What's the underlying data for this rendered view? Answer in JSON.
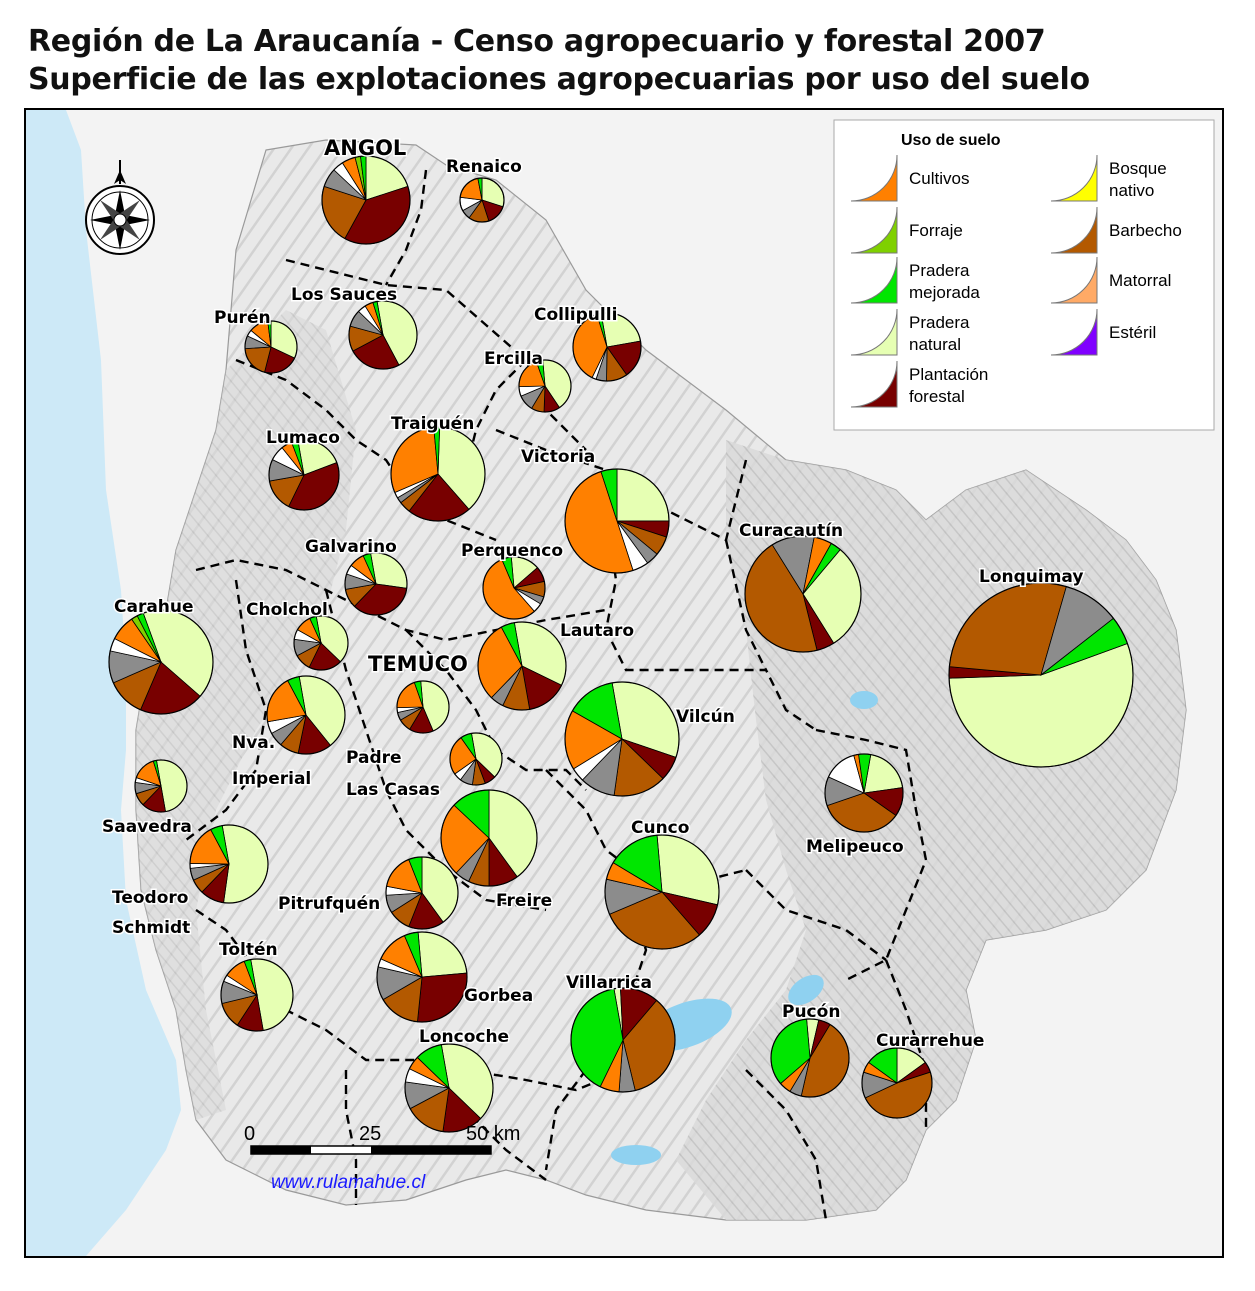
{
  "title": "Región de La Araucanía - Censo agropecuario y forestal 2007",
  "subtitle": "Superficie de las explotaciones agropecuarias por uso del suelo",
  "legend": {
    "title": "Uso de suelo",
    "items": [
      {
        "key": "cultivos",
        "label": [
          "Cultivos"
        ],
        "color": "#ff8000"
      },
      {
        "key": "forraje",
        "label": [
          "Forraje"
        ],
        "color": "#7fd000"
      },
      {
        "key": "pradera_mejorada",
        "label": [
          "Pradera",
          "mejorada"
        ],
        "color": "#00e600"
      },
      {
        "key": "pradera_natural",
        "label": [
          "Pradera",
          "natural"
        ],
        "color": "#e6ffb3"
      },
      {
        "key": "plantacion_forestal",
        "label": [
          "Plantación",
          "forestal"
        ],
        "color": "#780000"
      },
      {
        "key": "bosque_nativo",
        "label": [
          "Bosque",
          "nativo"
        ],
        "color": "#ffff00"
      },
      {
        "key": "barbecho",
        "label": [
          "Barbecho"
        ],
        "color": "#b35900"
      },
      {
        "key": "matorral",
        "label": [
          "Matorral"
        ],
        "color": "#ffaa66"
      },
      {
        "key": "esteril",
        "label": [
          "Estéril"
        ],
        "color": "#8000ff"
      }
    ]
  },
  "extra_colors": {
    "otros": "#8c8c8c",
    "sin_dato": "#ffffff"
  },
  "chart_data": {
    "type": "pie",
    "note_units": "share of farm area by land use (fraction), per commune",
    "communes": [
      {
        "name": "ANGOL",
        "values": {
          "pradera_natural": 0.2,
          "plantacion_forestal": 0.38,
          "barbecho": 0.22,
          "otros": 0.07,
          "cultivos": 0.05,
          "forraje": 0.02,
          "pradera_mejorada": 0.02,
          "sin_dato": 0.04
        }
      },
      {
        "name": "Renaico",
        "values": {
          "pradera_mejorada": 0.03,
          "pradera_natural": 0.3,
          "barbecho": 0.15,
          "plantacion_forestal": 0.15,
          "otros": 0.07,
          "cultivos": 0.2,
          "sin_dato": 0.1
        }
      },
      {
        "name": "Los Sauces",
        "values": {
          "pradera_natural": 0.45,
          "plantacion_forestal": 0.25,
          "barbecho": 0.12,
          "otros": 0.08,
          "cultivos": 0.04,
          "pradera_mejorada": 0.02,
          "sin_dato": 0.04
        }
      },
      {
        "name": "Purén",
        "values": {
          "pradera_natural": 0.32,
          "plantacion_forestal": 0.22,
          "barbecho": 0.2,
          "otros": 0.08,
          "cultivos": 0.12,
          "pradera_mejorada": 0.02,
          "sin_dato": 0.04
        }
      },
      {
        "name": "Collipulli",
        "values": {
          "pradera_natural": 0.25,
          "plantacion_forestal": 0.18,
          "barbecho": 0.1,
          "otros": 0.05,
          "cultivos": 0.38,
          "pradera_mejorada": 0.02,
          "sin_dato": 0.02
        }
      },
      {
        "name": "Ercilla",
        "values": {
          "pradera_natural": 0.42,
          "plantacion_forestal": 0.1,
          "barbecho": 0.08,
          "otros": 0.1,
          "cultivos": 0.2,
          "pradera_mejorada": 0.04,
          "sin_dato": 0.06
        }
      },
      {
        "name": "Traiguén",
        "values": {
          "pradera_natural": 0.38,
          "plantacion_forestal": 0.22,
          "barbecho": 0.04,
          "otros": 0.02,
          "cultivos": 0.3,
          "pradera_mejorada": 0.02,
          "sin_dato": 0.02
        }
      },
      {
        "name": "Lumaco",
        "values": {
          "pradera_natural": 0.22,
          "plantacion_forestal": 0.38,
          "barbecho": 0.15,
          "otros": 0.1,
          "cultivos": 0.05,
          "pradera_mejorada": 0.03,
          "sin_dato": 0.07
        }
      },
      {
        "name": "Victoria",
        "values": {
          "cultivos": 0.5,
          "pradera_mejorada": 0.05,
          "pradera_natural": 0.25,
          "plantacion_forestal": 0.05,
          "barbecho": 0.06,
          "otros": 0.04,
          "sin_dato": 0.05
        }
      },
      {
        "name": "Galvarino",
        "values": {
          "pradera_natural": 0.3,
          "plantacion_forestal": 0.35,
          "barbecho": 0.1,
          "otros": 0.08,
          "cultivos": 0.08,
          "pradera_mejorada": 0.04,
          "sin_dato": 0.05
        }
      },
      {
        "name": "Perquenco",
        "values": {
          "cultivos": 0.55,
          "pradera_mejorada": 0.05,
          "pradera_natural": 0.15,
          "plantacion_forestal": 0.08,
          "barbecho": 0.08,
          "otros": 0.04,
          "sin_dato": 0.05
        }
      },
      {
        "name": "Curacautín",
        "values": {
          "pradera_natural": 0.3,
          "plantacion_forestal": 0.05,
          "barbecho": 0.45,
          "otros": 0.12,
          "cultivos": 0.05,
          "pradera_mejorada": 0.03
        }
      },
      {
        "name": "Lonquimay",
        "values": {
          "pradera_natural": 0.55,
          "plantacion_forestal": 0.02,
          "barbecho": 0.28,
          "otros": 0.1,
          "pradera_mejorada": 0.05
        }
      },
      {
        "name": "Carahue",
        "values": {
          "pradera_natural": 0.42,
          "plantacion_forestal": 0.2,
          "barbecho": 0.12,
          "otros": 0.1,
          "cultivos": 0.08,
          "forraje": 0.02,
          "pradera_mejorada": 0.02,
          "sin_dato": 0.04
        }
      },
      {
        "name": "Cholchol",
        "values": {
          "pradera_natural": 0.4,
          "plantacion_forestal": 0.2,
          "barbecho": 0.1,
          "otros": 0.1,
          "cultivos": 0.1,
          "pradera_mejorada": 0.04,
          "sin_dato": 0.06
        }
      },
      {
        "name": "Lautaro",
        "values": {
          "pradera_natural": 0.35,
          "plantacion_forestal": 0.15,
          "barbecho": 0.1,
          "otros": 0.05,
          "cultivos": 0.3,
          "pradera_mejorada": 0.05
        }
      },
      {
        "name": "TEMUCO",
        "values": {
          "pradera_natural": 0.45,
          "plantacion_forestal": 0.15,
          "barbecho": 0.08,
          "otros": 0.05,
          "cultivos": 0.2,
          "pradera_mejorada": 0.04,
          "sin_dato": 0.03
        }
      },
      {
        "name": "Nva. Imperial",
        "values": {
          "pradera_natural": 0.42,
          "plantacion_forestal": 0.14,
          "barbecho": 0.08,
          "otros": 0.06,
          "cultivos": 0.2,
          "pradera_mejorada": 0.05,
          "sin_dato": 0.05
        }
      },
      {
        "name": "Vilcún",
        "values": {
          "pradera_natural": 0.33,
          "plantacion_forestal": 0.07,
          "barbecho": 0.15,
          "otros": 0.1,
          "cultivos": 0.17,
          "pradera_mejorada": 0.14,
          "sin_dato": 0.04
        }
      },
      {
        "name": "Padre Las Casas",
        "values": {
          "pradera_natural": 0.4,
          "plantacion_forestal": 0.07,
          "barbecho": 0.08,
          "otros": 0.08,
          "cultivos": 0.25,
          "pradera_mejorada": 0.07,
          "sin_dato": 0.05
        }
      },
      {
        "name": "Saavedra",
        "values": {
          "pradera_natural": 0.5,
          "plantacion_forestal": 0.15,
          "barbecho": 0.08,
          "otros": 0.07,
          "cultivos": 0.15,
          "pradera_mejorada": 0.02,
          "sin_dato": 0.03
        }
      },
      {
        "name": "Melipeuco",
        "values": {
          "pradera_natural": 0.2,
          "plantacion_forestal": 0.12,
          "barbecho": 0.35,
          "otros": 0.12,
          "cultivos": 0.02,
          "pradera_mejorada": 0.05,
          "sin_dato": 0.14
        }
      },
      {
        "name": "Teodoro Schmidt",
        "values": {
          "pradera_natural": 0.55,
          "plantacion_forestal": 0.1,
          "barbecho": 0.06,
          "otros": 0.05,
          "cultivos": 0.17,
          "pradera_mejorada": 0.05,
          "sin_dato": 0.02
        }
      },
      {
        "name": "Freire",
        "values": {
          "pradera_natural": 0.4,
          "plantacion_forestal": 0.1,
          "barbecho": 0.07,
          "otros": 0.05,
          "cultivos": 0.25,
          "pradera_mejorada": 0.13
        }
      },
      {
        "name": "Cunco",
        "values": {
          "pradera_natural": 0.3,
          "plantacion_forestal": 0.1,
          "barbecho": 0.3,
          "otros": 0.1,
          "cultivos": 0.05,
          "pradera_mejorada": 0.15
        }
      },
      {
        "name": "Pitrufquén",
        "values": {
          "pradera_natural": 0.4,
          "plantacion_forestal": 0.16,
          "barbecho": 0.1,
          "otros": 0.08,
          "cultivos": 0.16,
          "pradera_mejorada": 0.06,
          "sin_dato": 0.04
        }
      },
      {
        "name": "Toltén",
        "values": {
          "pradera_natural": 0.5,
          "plantacion_forestal": 0.12,
          "barbecho": 0.12,
          "otros": 0.1,
          "cultivos": 0.1,
          "pradera_mejorada": 0.03,
          "sin_dato": 0.03
        }
      },
      {
        "name": "Gorbea",
        "values": {
          "pradera_natural": 0.25,
          "plantacion_forestal": 0.28,
          "barbecho": 0.15,
          "otros": 0.12,
          "cultivos": 0.12,
          "pradera_mejorada": 0.05,
          "sin_dato": 0.03
        }
      },
      {
        "name": "Villarrica",
        "values": {
          "pradera_mejorada": 0.4,
          "pradera_natural": 0.02,
          "plantacion_forestal": 0.12,
          "barbecho": 0.35,
          "otros": 0.05,
          "cultivos": 0.06
        }
      },
      {
        "name": "Loncoche",
        "values": {
          "pradera_natural": 0.4,
          "plantacion_forestal": 0.15,
          "barbecho": 0.15,
          "otros": 0.1,
          "cultivos": 0.05,
          "pradera_mejorada": 0.1,
          "sin_dato": 0.05
        }
      },
      {
        "name": "Pucón",
        "values": {
          "pradera_mejorada": 0.35,
          "plantacion_forestal": 0.05,
          "barbecho": 0.45,
          "otros": 0.05,
          "cultivos": 0.05,
          "pradera_natural": 0.05
        }
      },
      {
        "name": "Curarrehue",
        "values": {
          "pradera_natural": 0.15,
          "barbecho": 0.48,
          "otros": 0.12,
          "pradera_mejorada": 0.15,
          "cultivos": 0.05,
          "plantacion_forestal": 0.05
        }
      }
    ]
  },
  "scale_bar": {
    "labels": [
      "0",
      "25",
      "50 km"
    ]
  },
  "credit": "www.rulamahue.cl"
}
